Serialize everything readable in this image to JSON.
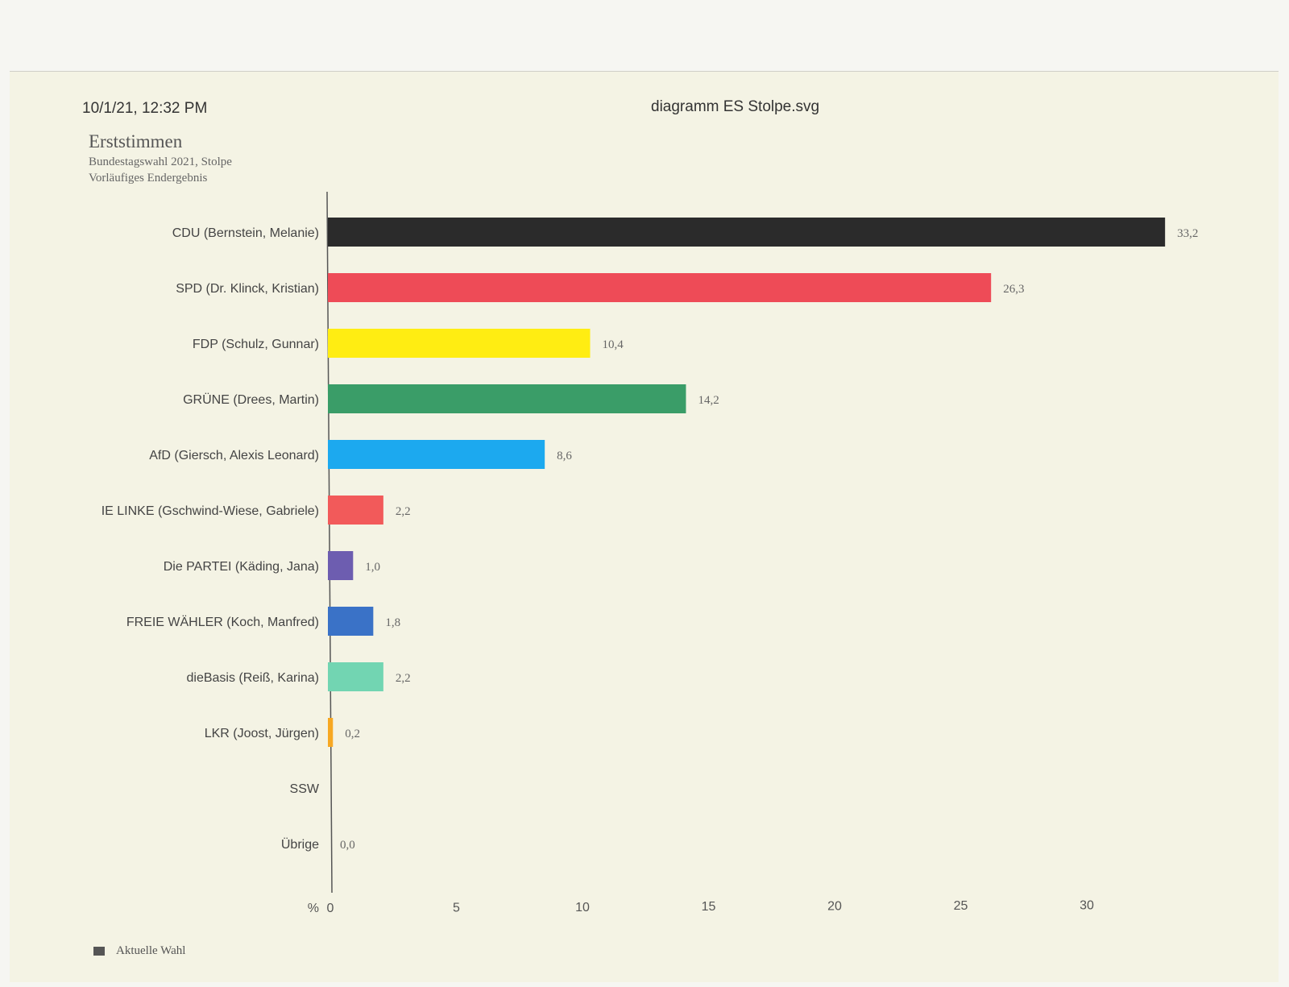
{
  "header": {
    "timestamp": "10/1/21, 12:32 PM",
    "filename": "diagramm ES Stolpe.svg"
  },
  "chart_data": {
    "type": "bar",
    "orientation": "horizontal",
    "title": "Erststimmen",
    "subtitle": [
      "Bundestagswahl 2021, Stolpe",
      "Vorläufiges Endergebnis"
    ],
    "xlabel": "%",
    "xlim": [
      0,
      33.2
    ],
    "xticks": [
      "0",
      "5",
      "10",
      "15",
      "20",
      "25",
      "30"
    ],
    "categories": [
      "CDU (Bernstein, Melanie)",
      "SPD (Dr. Klinck, Kristian)",
      "FDP (Schulz, Gunnar)",
      "GRÜNE (Drees, Martin)",
      "AfD (Giersch, Alexis Leonard)",
      "IE LINKE (Gschwind-Wiese, Gabriele)",
      "Die PARTEI (Käding, Jana)",
      "FREIE WÄHLER (Koch, Manfred)",
      "dieBasis (Reiß, Karina)",
      "LKR (Joost, Jürgen)",
      "SSW",
      "Übrige"
    ],
    "values": [
      33.2,
      26.3,
      10.4,
      14.2,
      8.6,
      2.2,
      1.0,
      1.8,
      2.2,
      0.2,
      null,
      0.0
    ],
    "value_labels": [
      "33,2",
      "26,3",
      "10,4",
      "14,2",
      "8,6",
      "2,2",
      "1,0",
      "1,8",
      "2,2",
      "0,2",
      "",
      "0,0"
    ],
    "colors": [
      "#2b2b2b",
      "#ee4b57",
      "#ffed12",
      "#3a9d68",
      "#1ca9ef",
      "#f25a5a",
      "#6d5db0",
      "#3a72c7",
      "#72d5b2",
      "#f7a823",
      "#999999",
      "#999999"
    ],
    "legend": {
      "label": "Aktuelle Wahl",
      "color": "#555555",
      "position": "bottom-left"
    }
  }
}
